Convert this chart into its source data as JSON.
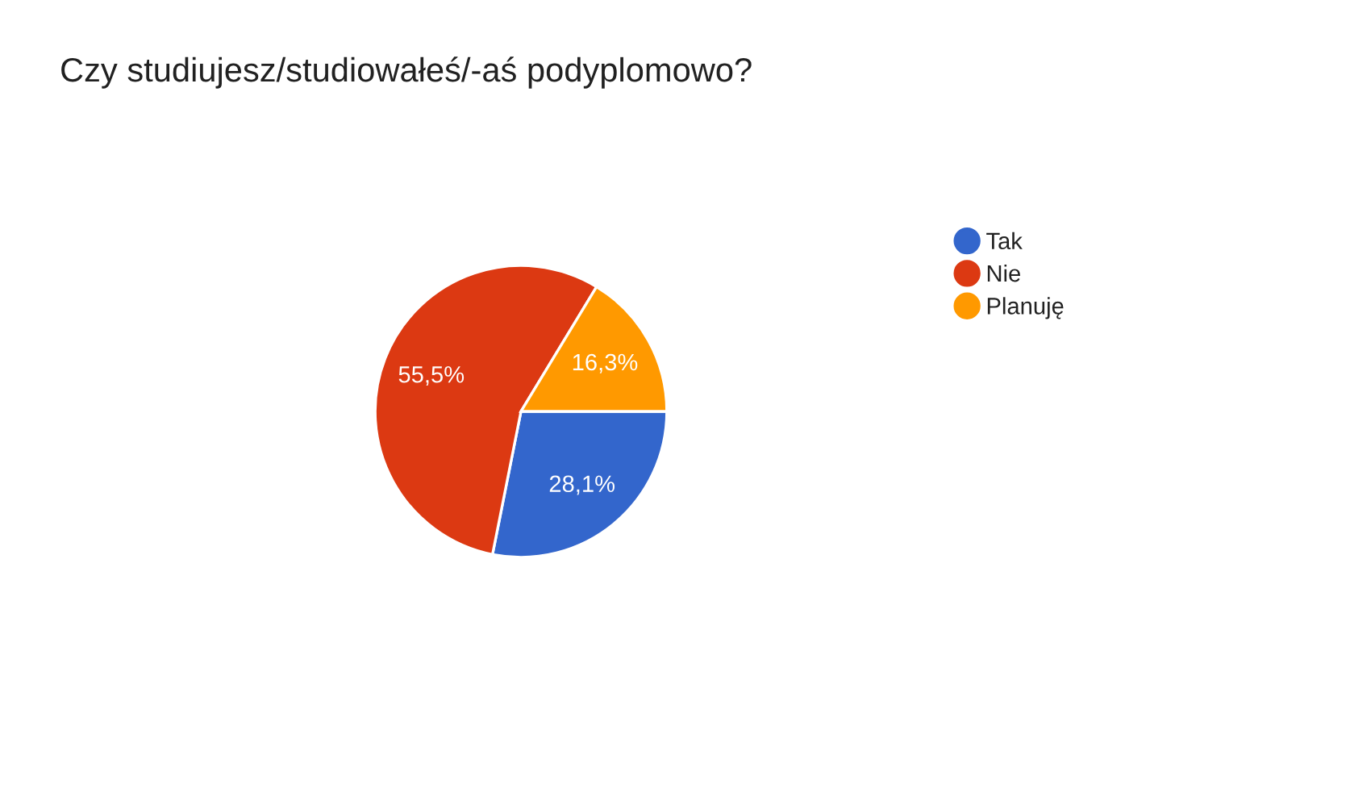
{
  "chart_data": {
    "type": "pie",
    "title": "Czy studiujesz/studiowałeś/-aś podyplomowo?",
    "categories": [
      "Tak",
      "Nie",
      "Planuję"
    ],
    "values": [
      28.1,
      55.5,
      16.3
    ],
    "value_labels": [
      "28,1%",
      "55,5%",
      "16,3%"
    ],
    "colors": [
      "#3366cc",
      "#dc3912",
      "#ff9900"
    ],
    "legend": "right"
  }
}
